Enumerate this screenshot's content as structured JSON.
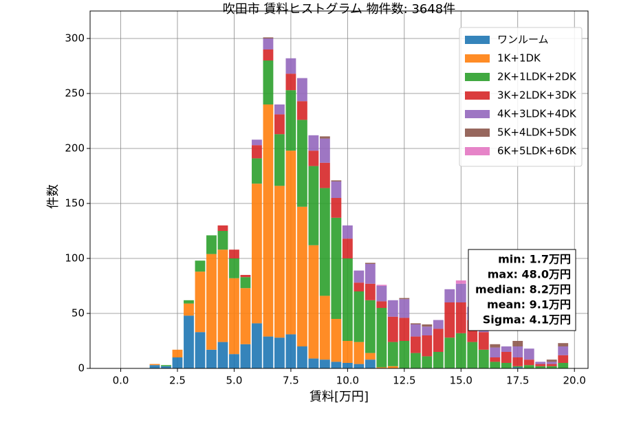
{
  "chart_data": {
    "type": "histogram",
    "title": "吹田市 賃料ヒストグラム  物件数: 3648件",
    "x_label": "賃料[万円]",
    "y_label": "件数",
    "bins": [
      1.25,
      1.75,
      2.25,
      2.75,
      3.25,
      3.75,
      4.25,
      4.75,
      5.25,
      5.75,
      6.25,
      6.75,
      7.25,
      7.75,
      8.25,
      8.75,
      9.25,
      9.75,
      10.25,
      10.75,
      11.25,
      11.75,
      12.25,
      12.75,
      13.25,
      13.75,
      14.25,
      14.75,
      15.25,
      15.75,
      16.25,
      16.75,
      17.25,
      17.75,
      18.25,
      18.75,
      19.25,
      19.75
    ],
    "stacked": true,
    "series": [
      {
        "name": "ワンルーム",
        "color": "#1f77b4",
        "values": [
          3,
          2,
          10,
          48,
          33,
          17,
          24,
          13,
          22,
          41,
          29,
          28,
          31,
          20,
          9,
          8,
          6,
          5,
          4,
          8,
          0,
          0,
          0,
          0,
          0,
          0,
          0,
          0,
          0,
          0,
          0,
          0,
          1,
          0,
          0,
          0,
          0
        ]
      },
      {
        "name": "1K+1DK",
        "color": "#ff7f0e",
        "values": [
          1,
          0,
          7,
          11,
          55,
          87,
          84,
          69,
          51,
          127,
          211,
          138,
          167,
          127,
          103,
          58,
          39,
          20,
          20,
          6,
          1,
          2,
          0,
          0,
          0,
          0,
          0,
          0,
          0,
          0,
          0,
          0,
          0,
          0,
          0,
          0,
          0
        ]
      },
      {
        "name": "2K+1LDK+2DK",
        "color": "#2ca02c",
        "values": [
          0,
          1,
          0,
          3,
          10,
          17,
          17,
          18,
          10,
          23,
          40,
          47,
          55,
          79,
          72,
          98,
          92,
          75,
          46,
          48,
          54,
          22,
          25,
          14,
          11,
          15,
          28,
          32,
          24,
          17,
          6,
          5,
          1,
          3,
          2,
          2,
          5
        ]
      },
      {
        "name": "3K+2LDK+3DK",
        "color": "#d62728",
        "values": [
          0,
          0,
          0,
          0,
          0,
          0,
          5,
          8,
          2,
          12,
          10,
          18,
          15,
          17,
          14,
          23,
          18,
          18,
          8,
          15,
          6,
          23,
          21,
          15,
          19,
          21,
          32,
          28,
          20,
          16,
          4,
          10,
          8,
          5,
          2,
          2,
          7
        ]
      },
      {
        "name": "4K+3LDK+4DK",
        "color": "#9467bd",
        "values": [
          0,
          0,
          0,
          0,
          0,
          0,
          0,
          0,
          0,
          5,
          10,
          9,
          14,
          21,
          14,
          22,
          15,
          12,
          11,
          18,
          14,
          15,
          17,
          11,
          8,
          8,
          12,
          17,
          12,
          10,
          9,
          5,
          10,
          10,
          2,
          2,
          8
        ]
      },
      {
        "name": "5K+4LDK+5DK",
        "color": "#8c564b",
        "values": [
          0,
          0,
          0,
          0,
          0,
          0,
          0,
          0,
          0,
          0,
          1,
          0,
          0,
          0,
          0,
          2,
          1,
          0,
          0,
          1,
          0,
          0,
          1,
          1,
          2,
          0,
          0,
          0,
          0,
          0,
          3,
          0,
          5,
          0,
          0,
          2,
          3
        ]
      },
      {
        "name": "6K+5LDK+6DK",
        "color": "#e377c2",
        "values": [
          0,
          0,
          0,
          0,
          0,
          0,
          0,
          0,
          0,
          0,
          0,
          0,
          0,
          0,
          0,
          0,
          0,
          0,
          0,
          0,
          1,
          0,
          0,
          0,
          0,
          0,
          0,
          3,
          0,
          0,
          0,
          0,
          0,
          0,
          0,
          0,
          0
        ]
      }
    ],
    "xlim": [
      -1.35,
      20.6
    ],
    "ylim": [
      0,
      325
    ],
    "xticks": [
      {
        "value": 0,
        "label": "0.0"
      },
      {
        "value": 2.5,
        "label": "2.5"
      },
      {
        "value": 5,
        "label": "5.0"
      },
      {
        "value": 7.5,
        "label": "7.5"
      },
      {
        "value": 10,
        "label": "10.0"
      },
      {
        "value": 12.5,
        "label": "12.5"
      },
      {
        "value": 15,
        "label": "15.0"
      },
      {
        "value": 17.5,
        "label": "17.5"
      },
      {
        "value": 20,
        "label": "20.0"
      }
    ],
    "yticks": [
      0,
      50,
      100,
      150,
      200,
      250,
      300
    ],
    "grid": true,
    "legend": "upper right",
    "annotations": [
      "min: 1.7万円",
      "max: 48.0万円",
      "median: 8.2万円",
      "mean: 9.1万円",
      "Sigma: 4.1万円"
    ]
  }
}
